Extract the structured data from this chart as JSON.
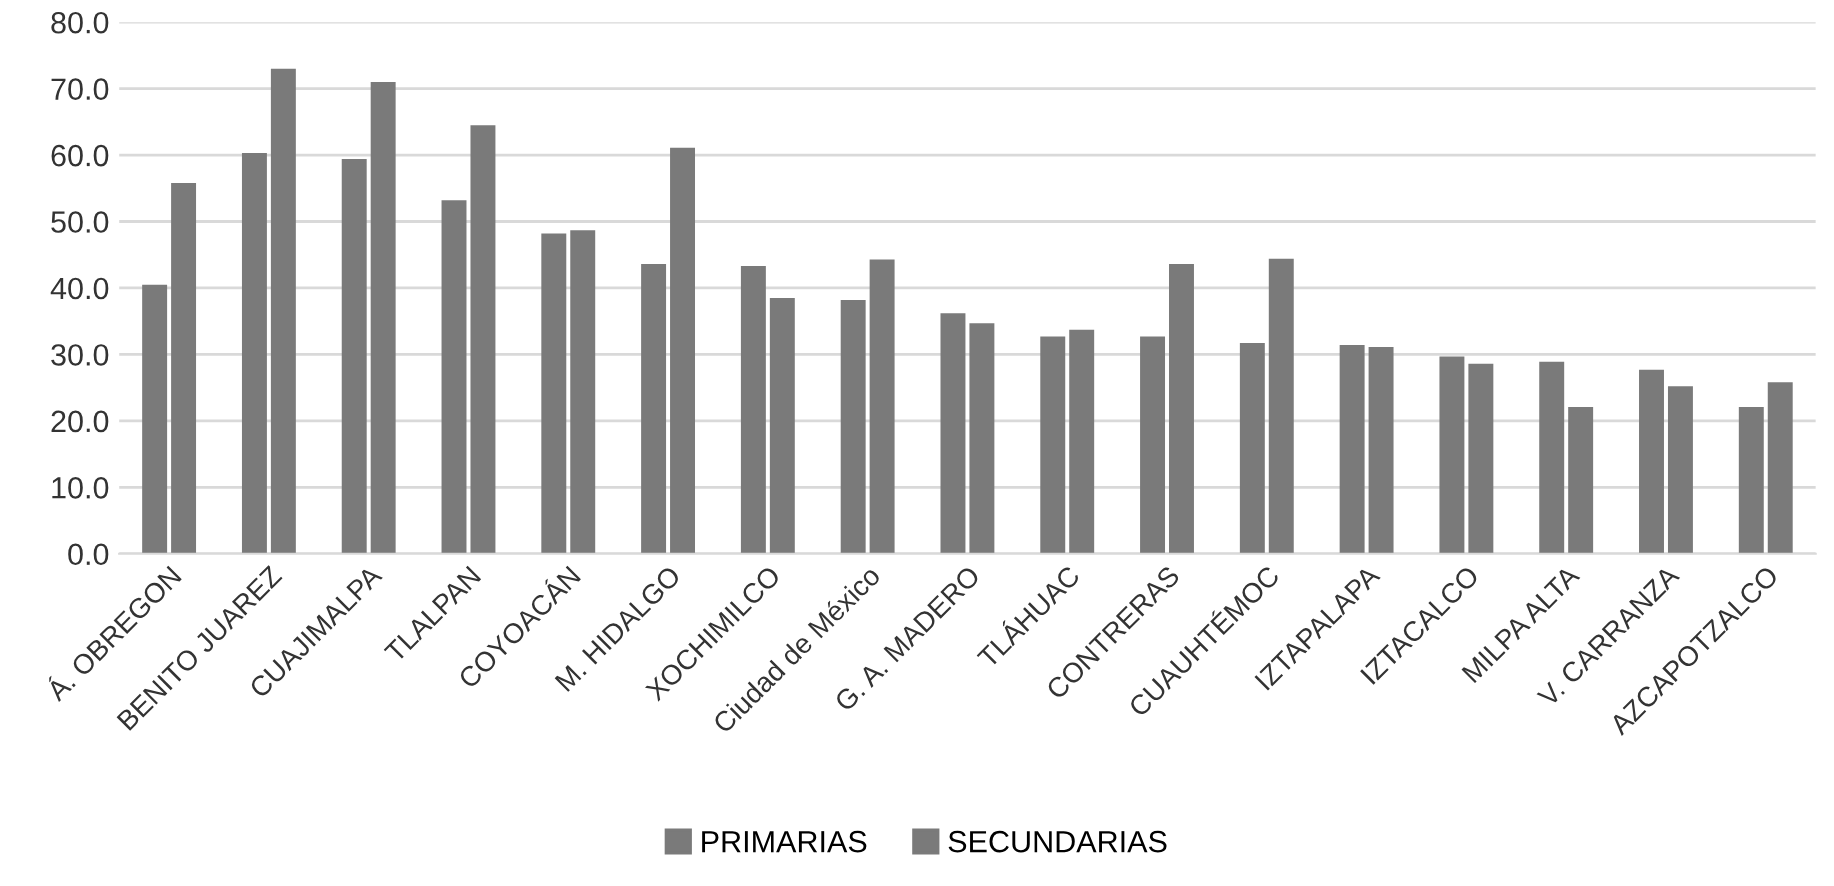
{
  "chart_data": {
    "type": "bar",
    "categories": [
      "Á. OBREGON",
      "BENITO JUAREZ",
      "CUAJIMALPA",
      "TLALPAN",
      "COYOACÁN",
      "M. HIDALGO",
      "XOCHIMILCO",
      "Ciudad de México",
      "G. A. MADERO",
      "TLÁHUAC",
      "CONTRERAS",
      "CUAUHTÉMOC",
      "IZTAPALAPA",
      "IZTACALCO",
      "MILPA ALTA",
      "V. CARRANZA",
      "AZCAPOTZALCO"
    ],
    "series": [
      {
        "name": "PRIMARIAS",
        "color": "#7a7a7a",
        "values": [
          40.5,
          60.3,
          59.4,
          53.2,
          48.2,
          43.6,
          43.3,
          38.2,
          36.2,
          32.7,
          32.7,
          31.7,
          31.4,
          29.7,
          28.9,
          27.7,
          22.1
        ]
      },
      {
        "name": "SECUNDARIAS",
        "color": "#7a7a7a",
        "values": [
          55.8,
          73.0,
          71.0,
          64.5,
          48.7,
          61.1,
          38.5,
          44.3,
          34.7,
          33.7,
          43.6,
          44.4,
          31.1,
          28.6,
          22.1,
          25.2,
          25.8
        ]
      }
    ],
    "ylim": [
      0,
      80
    ],
    "yticks": [
      {
        "value": 0,
        "label": "0.0"
      },
      {
        "value": 10,
        "label": "10.0"
      },
      {
        "value": 20,
        "label": "20.0"
      },
      {
        "value": 30,
        "label": "30.0"
      },
      {
        "value": 40,
        "label": "40.0"
      },
      {
        "value": 50,
        "label": "50.0"
      },
      {
        "value": 60,
        "label": "60.0"
      },
      {
        "value": 70,
        "label": "70.0"
      },
      {
        "value": 80,
        "label": "80.0"
      }
    ],
    "grid": "y",
    "legend": "bottom"
  }
}
